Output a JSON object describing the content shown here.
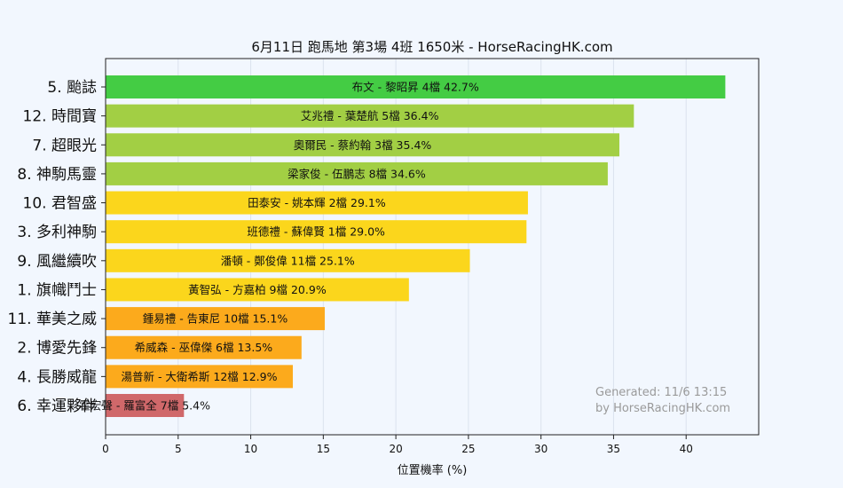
{
  "chart_data": {
    "type": "bar",
    "orientation": "horizontal",
    "title": "6月11日  跑馬地  第3場  4班  1650米 - HorseRacingHK.com",
    "xlabel": "位置機率 (%)",
    "ylabel": "",
    "xlim": [
      0,
      45
    ],
    "xticks": [
      "0",
      "5",
      "10",
      "15",
      "20",
      "25",
      "30",
      "35",
      "40"
    ],
    "grid": true,
    "categories": [
      "5. 颱誌",
      "12. 時間寶",
      "7. 超眼光",
      "8. 神駒馬靈",
      "10. 君智盛",
      "3. 多利神駒",
      "9. 風繼續吹",
      "1. 旗幟鬥士",
      "11. 華美之威",
      "2. 博愛先鋒",
      "4. 長勝威龍",
      "6. 幸運夥伴"
    ],
    "values": [
      42.7,
      36.4,
      35.4,
      34.6,
      29.1,
      29.0,
      25.1,
      20.9,
      15.1,
      13.5,
      12.9,
      5.4
    ],
    "bar_labels": [
      "布文 - 黎昭昇 4檔  42.7%",
      "艾兆禮 - 葉楚航 5檔  36.4%",
      "奧爾民 - 蔡約翰 3檔  35.4%",
      "梁家俊 - 伍鵬志 8檔  34.6%",
      "田泰安 - 姚本輝 2檔  29.1%",
      "班德禮 - 蘇偉賢 1檔  29.0%",
      "潘頓 - 鄭俊偉 11檔  25.1%",
      "黃智弘 - 方嘉柏 9檔  20.9%",
      "鍾易禮 - 告東尼 10檔  15.1%",
      "希威森 - 巫偉傑 6檔  13.5%",
      "湯普新 - 大衛希斯 12檔  12.9%",
      "霍宏聲 - 羅富全 7檔  5.4%"
    ],
    "colors": [
      "#44cc44",
      "#a2cf44",
      "#a2cf44",
      "#a2cf44",
      "#fbd61c",
      "#fbd61c",
      "#fbd61c",
      "#fbd61c",
      "#fcaa1c",
      "#fcaa1c",
      "#fcaa1c",
      "#d0686a"
    ]
  },
  "watermark": {
    "line1": "Generated: 11/6 13:15",
    "line2": "by HorseRacingHK.com"
  },
  "style": {
    "background": "#f2f7fe",
    "grid_color": "#dbe3ee",
    "axis_color": "#222222"
  }
}
